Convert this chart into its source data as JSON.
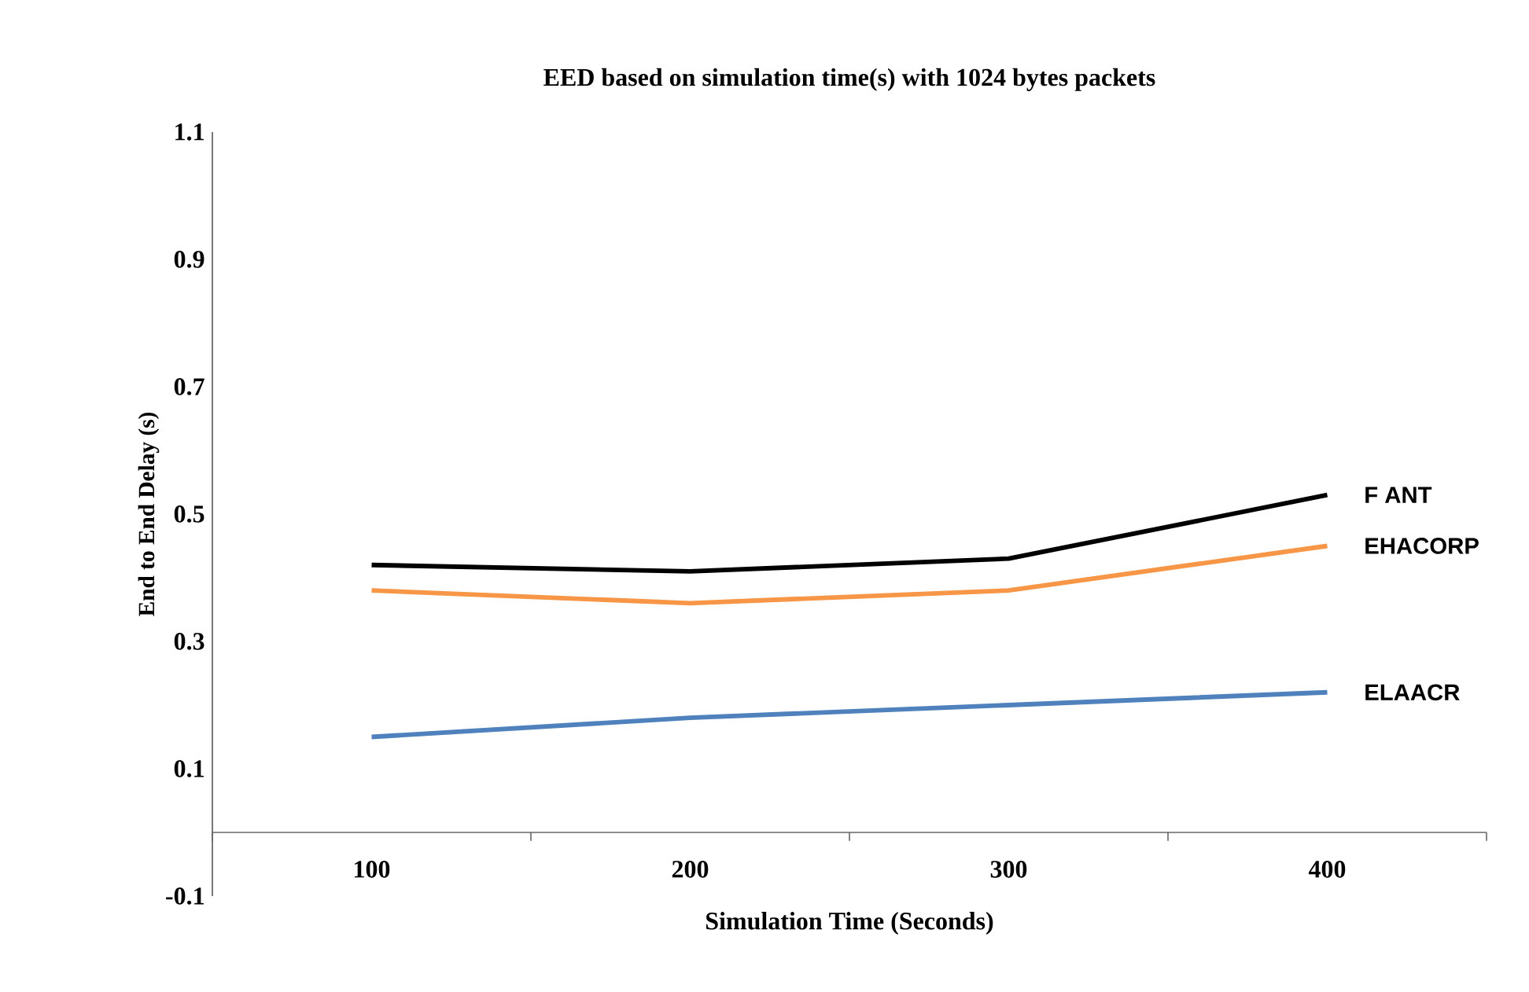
{
  "chart_data": {
    "type": "line",
    "title": "EED  based on simulation  time(s) with 1024 bytes packets",
    "xlabel": "Simulation  Time (Seconds)",
    "ylabel": "End to End Delay (s)",
    "categories": [
      "100",
      "200",
      "300",
      "400"
    ],
    "ylim": [
      -0.1,
      1.1
    ],
    "yticks": [
      -0.1,
      0.1,
      0.3,
      0.5,
      0.7,
      0.9,
      1.1
    ],
    "grid": false,
    "legend": false,
    "marker": "none",
    "line_style": "solid",
    "series": [
      {
        "name": "F ANT",
        "color": "#000000",
        "values": [
          0.42,
          0.41,
          0.43,
          0.53
        ]
      },
      {
        "name": "EHACORP",
        "color": "#f79646",
        "values": [
          0.38,
          0.36,
          0.38,
          0.45
        ]
      },
      {
        "name": "ELAACR",
        "color": "#4f81bd",
        "values": [
          0.15,
          0.18,
          0.2,
          0.22
        ]
      }
    ]
  }
}
